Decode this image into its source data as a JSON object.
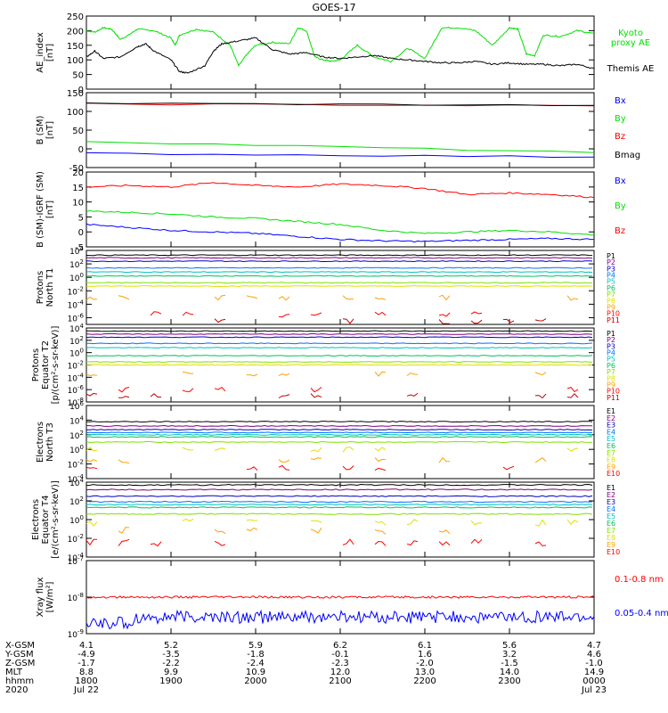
{
  "title": "GOES-17",
  "colors": {
    "green": "#00e000",
    "black": "#000000",
    "blue": "#0000ff",
    "red": "#ff0000",
    "darkred": "#800000",
    "cyan": "#00e0e0",
    "yellow": "#e0e000",
    "orange": "#ff9900",
    "navy": "#0000a0",
    "purple": "#7000a0",
    "lime": "#80ff00",
    "teal": "#00a0a0",
    "olive": "#a0a000",
    "magenta": "#ff00c0"
  },
  "chart_data": [
    {
      "type": "line",
      "ylabel": "AE_index\n[nT]",
      "ylim": [
        0,
        250
      ],
      "yticks": [
        "0",
        "50",
        "100",
        "150",
        "200",
        "250"
      ],
      "series": [
        {
          "name": "Kyoto proxy AE",
          "color": "#00e000",
          "x": [
            0,
            0.1,
            0.2,
            0.3,
            0.4,
            0.5,
            0.6,
            0.8,
            1.0,
            1.05,
            1.1,
            1.3,
            1.5,
            1.7,
            1.8,
            1.9,
            2.0,
            2.2,
            2.4,
            2.5,
            2.6,
            2.7,
            2.8,
            2.9,
            3.0,
            3.2,
            3.4,
            3.6,
            3.8,
            4.0,
            4.2,
            4.4,
            4.6,
            4.8,
            5.0,
            5.1,
            5.2,
            5.3,
            5.4,
            5.6,
            5.8,
            6.0
          ],
          "y": [
            200,
            195,
            210,
            205,
            170,
            185,
            205,
            200,
            175,
            150,
            185,
            205,
            195,
            150,
            80,
            120,
            150,
            160,
            155,
            210,
            200,
            110,
            100,
            95,
            100,
            150,
            110,
            95,
            140,
            105,
            210,
            210,
            200,
            150,
            210,
            205,
            120,
            115,
            185,
            180,
            200,
            190
          ]
        },
        {
          "name": "Themis AE",
          "color": "#000000",
          "x": [
            0,
            0.1,
            0.2,
            0.4,
            0.6,
            0.7,
            0.8,
            1.0,
            1.1,
            1.2,
            1.4,
            1.5,
            1.6,
            1.8,
            2.0,
            2.2,
            2.4,
            2.6,
            2.8,
            3.0,
            3.2,
            3.4,
            3.6,
            3.8,
            4.0,
            4.2,
            4.4,
            4.6,
            4.8,
            5.0,
            5.2,
            5.4,
            5.6,
            5.8,
            6.0
          ],
          "y": [
            110,
            130,
            105,
            110,
            145,
            155,
            130,
            100,
            60,
            55,
            80,
            130,
            155,
            165,
            175,
            135,
            120,
            125,
            110,
            105,
            110,
            115,
            105,
            100,
            95,
            90,
            90,
            95,
            85,
            90,
            85,
            85,
            80,
            85,
            70
          ]
        }
      ]
    },
    {
      "type": "line",
      "ylabel": "B (SM)\n[nT]",
      "ylim": [
        -50,
        150
      ],
      "yticks": [
        "-50",
        "0",
        "50",
        "100",
        "150"
      ],
      "series": [
        {
          "name": "Bx",
          "color": "#0000ff",
          "x": [
            0,
            6
          ],
          "y": [
            -12,
            -22
          ]
        },
        {
          "name": "By",
          "color": "#00e000",
          "x": [
            0,
            6
          ],
          "y": [
            20,
            -10
          ]
        },
        {
          "name": "Bz",
          "color": "#ff0000",
          "x": [
            0,
            6
          ],
          "y": [
            120,
            115
          ]
        },
        {
          "name": "Bmag",
          "color": "#000000",
          "x": [
            0,
            6
          ],
          "y": [
            122,
            116
          ]
        }
      ]
    },
    {
      "type": "line",
      "ylabel": "B (SM)-IGRF (SM)\n[nT]",
      "ylim": [
        -5,
        20
      ],
      "yticks": [
        "-5",
        "0",
        "5",
        "10",
        "15",
        "20"
      ],
      "series": [
        {
          "name": "Bx",
          "color": "#0000ff",
          "x": [
            0,
            0.5,
            1,
            1.5,
            2,
            2.5,
            3,
            3.5,
            4,
            4.5,
            5,
            5.5,
            6
          ],
          "y": [
            2.5,
            1.5,
            0.5,
            0,
            -0.5,
            -1.5,
            -2.5,
            -3,
            -3.2,
            -2.8,
            -2.5,
            -2.2,
            -2.5
          ]
        },
        {
          "name": "By",
          "color": "#00e000",
          "x": [
            0,
            0.5,
            1,
            1.5,
            2,
            2.5,
            3,
            3.5,
            4,
            4.5,
            5,
            5.5,
            6
          ],
          "y": [
            7,
            6.5,
            6,
            5,
            4.5,
            3.5,
            2.5,
            0.5,
            -0.5,
            0,
            0.5,
            0,
            -1
          ]
        },
        {
          "name": "Bz",
          "color": "#ff0000",
          "x": [
            0,
            0.5,
            1,
            1.5,
            2,
            2.5,
            3,
            3.5,
            4,
            4.5,
            5,
            5.5,
            6
          ],
          "y": [
            15,
            15.5,
            15,
            16.5,
            15.5,
            15,
            16,
            15.5,
            14.5,
            12.5,
            13,
            12.5,
            11.5
          ]
        }
      ]
    },
    {
      "type": "line",
      "log": true,
      "ylabel": "Protons\nNorth T1",
      "ylim": [
        -7,
        4
      ],
      "yticks": [
        "10^4",
        "10^2",
        "10^0",
        "10^-2",
        "10^-4",
        "10^-6"
      ],
      "channels": [
        "P1",
        "P2",
        "P3",
        "P4",
        "P5",
        "P6",
        "P7",
        "P8",
        "P9",
        "P10",
        "P11"
      ],
      "levels": [
        3.3,
        2.9,
        2.4,
        1.4,
        0.8,
        0.2,
        -0.8,
        -1.3,
        -3,
        -5.5,
        -6.5
      ]
    },
    {
      "type": "line",
      "log": true,
      "ylabel": "Protons\nEquator T2\n[p/(cm²-s-sr-keV)]",
      "ylim": [
        -8,
        4
      ],
      "yticks": [
        "10^4",
        "10^2",
        "10^0",
        "10^-2",
        "10^-4",
        "10^-6",
        "10^-8"
      ],
      "channels": [
        "P1",
        "P2",
        "P3",
        "P4",
        "P5",
        "P6",
        "P7",
        "P8",
        "P9",
        "P10",
        "P11"
      ],
      "levels": [
        3.5,
        3,
        2.5,
        1.5,
        0.8,
        -0.5,
        -1.5,
        -2,
        -3.5,
        -6,
        -7
      ]
    },
    {
      "type": "line",
      "log": true,
      "ylabel": "Electrons\nNorth T3",
      "ylim": [
        -4,
        6
      ],
      "yticks": [
        "10^6",
        "10^4",
        "10^2",
        "10^0",
        "10^-2",
        "10^-4"
      ],
      "channels": [
        "E1",
        "E2",
        "E3",
        "E4",
        "E5",
        "E6",
        "E7",
        "E8",
        "E9",
        "E10"
      ],
      "levels": [
        3.8,
        3.2,
        2.7,
        2.3,
        2,
        1.7,
        1,
        0,
        -1.5,
        -2.5
      ]
    },
    {
      "type": "line",
      "log": true,
      "ylabel": "Electrons\nEquator T4\n[e/(cm²-s-sr-keV)]",
      "ylim": [
        -4,
        4
      ],
      "yticks": [
        "10^4",
        "10^2",
        "10^0",
        "10^-2",
        "10^-4"
      ],
      "channels": [
        "E1",
        "E2",
        "E3",
        "E4",
        "E5",
        "E6",
        "E7",
        "E8",
        "E9",
        "E10"
      ],
      "levels": [
        3.7,
        3.2,
        2.5,
        1.9,
        1.6,
        1.3,
        0.6,
        -0.3,
        -1.2,
        -2.5
      ]
    },
    {
      "type": "line",
      "log": true,
      "ylabel": "Xray flux\n[W/m²]",
      "ylim": [
        -9,
        -7
      ],
      "yticks": [
        "10^-7",
        "10^-8",
        "10^-9"
      ],
      "series": [
        {
          "name": "0.1-0.8 nm",
          "color": "#ff0000",
          "level": -8
        },
        {
          "name": "0.05-0.4 nm",
          "color": "#0000ff",
          "level": -8.55
        }
      ]
    }
  ],
  "xaxis": {
    "rows": [
      {
        "label": "X-GSM",
        "values": [
          "4.1",
          "5.2",
          "5.9",
          "6.2",
          "6.1",
          "5.6",
          "4.7"
        ]
      },
      {
        "label": "Y-GSM",
        "values": [
          "-4.9",
          "-3.5",
          "-1.8",
          "-0.1",
          "1.6",
          "3.2",
          "4.6"
        ]
      },
      {
        "label": "Z-GSM",
        "values": [
          "-1.7",
          "-2.2",
          "-2.4",
          "-2.3",
          "-2.0",
          "-1.5",
          "-1.0"
        ]
      },
      {
        "label": "MLT",
        "values": [
          "8.8",
          "9.9",
          "10.9",
          "12.0",
          "13.0",
          "14.0",
          "14.9"
        ]
      },
      {
        "label": "hhmm",
        "values": [
          "1800",
          "1900",
          "2000",
          "2100",
          "2200",
          "2300",
          "0000"
        ]
      },
      {
        "label": "2020",
        "values": [
          "Jul 22",
          "",
          "",
          "",
          "",
          "",
          "Jul 23"
        ]
      }
    ]
  }
}
